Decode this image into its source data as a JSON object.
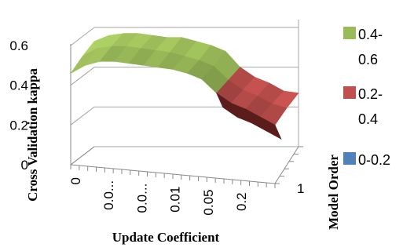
{
  "chart_data": {
    "type": "surface",
    "title": "",
    "xlabel": "Update Coefficient",
    "ylabel": "Cross Validation kappa",
    "zlabel": "Model Order",
    "ylim": [
      0,
      0.6
    ],
    "y_ticks": [
      "0",
      "0.2",
      "0.4",
      "0.6"
    ],
    "x_tick_labels": [
      "0",
      "0.0...",
      "0.0...",
      "0.01",
      "0.05",
      "0.2"
    ],
    "z_tick_labels": [
      "1"
    ],
    "grid": true,
    "legend_position": "right",
    "legend": [
      {
        "label": "0.4-0.6",
        "line1": "0.4-",
        "line2": "0.6",
        "color": "#9bbb59"
      },
      {
        "label": "0.2-0.4",
        "line1": "0.2-",
        "line2": "0.4",
        "color": "#c0504d"
      },
      {
        "label": "0-0.2",
        "line1": "0-0.2",
        "line2": "",
        "color": "#4f81bd"
      }
    ],
    "series": [
      {
        "name": "front",
        "values": [
          0.46,
          0.5,
          0.52,
          0.52,
          0.51,
          0.5,
          0.49,
          0.48,
          0.46,
          0.43,
          0.36,
          0.31,
          0.28,
          0.24,
          0.2
        ]
      },
      {
        "name": "middle",
        "values": [
          0.5,
          0.54,
          0.55,
          0.55,
          0.54,
          0.53,
          0.52,
          0.5,
          0.48,
          0.45,
          0.38,
          0.33,
          0.3,
          0.26,
          0.24
        ]
      },
      {
        "name": "back",
        "values": [
          0.53,
          0.56,
          0.57,
          0.57,
          0.56,
          0.55,
          0.55,
          0.53,
          0.51,
          0.48,
          0.4,
          0.35,
          0.32,
          0.28,
          0.27
        ]
      }
    ],
    "colors": {
      "band_high": "#9bbb59",
      "band_mid": "#c0504d",
      "band_low": "#4f81bd",
      "grid": "#a6a6a6",
      "axis": "#888888"
    }
  }
}
